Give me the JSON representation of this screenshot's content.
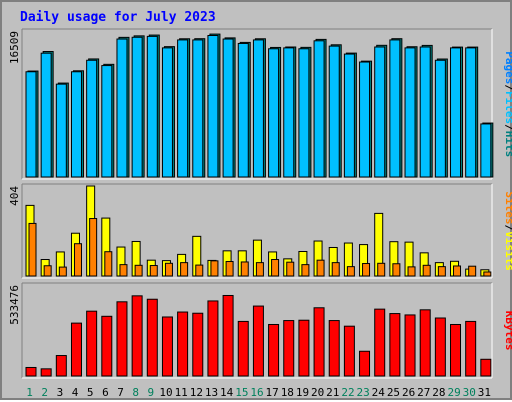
{
  "chart_data": {
    "type": "bar",
    "title": "Daily usage for July 2023",
    "categories": [
      "1",
      "2",
      "3",
      "4",
      "5",
      "6",
      "7",
      "8",
      "9",
      "10",
      "11",
      "12",
      "13",
      "14",
      "15",
      "16",
      "17",
      "18",
      "19",
      "20",
      "21",
      "22",
      "23",
      "24",
      "25",
      "26",
      "27",
      "28",
      "29",
      "30",
      "31"
    ],
    "weekend_days": [
      "1",
      "2",
      "8",
      "9",
      "15",
      "16",
      "22",
      "23",
      "29",
      "30"
    ],
    "panels": [
      {
        "id": "top",
        "max_label": "16509",
        "ylim": [
          0,
          16509
        ],
        "right_label": [
          "Pages",
          "/",
          "Files",
          "/",
          "Hits"
        ],
        "series": [
          {
            "name": "Hits",
            "color": "#008080",
            "values": [
              11980,
              14190,
              10620,
              12010,
              13350,
              12740,
              15790,
              15960,
              16050,
              14740,
              15630,
              15640,
              16160,
              15730,
              15220,
              15630,
              14650,
              14700,
              14660,
              15560,
              14950,
              14010,
              13100,
              14890,
              15640,
              14730,
              14880,
              13340,
              14690,
              14690,
              6100
            ]
          },
          {
            "name": "Files",
            "color": "#00c0ff",
            "values": [
              11900,
              14000,
              10500,
              11900,
              13200,
              12600,
              15600,
              15800,
              15900,
              14600,
              15500,
              15500,
              16000,
              15600,
              15100,
              15500,
              14500,
              14600,
              14500,
              15400,
              14800,
              13900,
              13000,
              14700,
              15500,
              14600,
              14700,
              13200,
              14600,
              14600,
              6000
            ]
          },
          {
            "name": "Pages",
            "color": "#0080ff",
            "values": []
          }
        ]
      },
      {
        "id": "mid",
        "max_label": "404",
        "ylim": [
          0,
          404
        ],
        "right_label": [
          "Sites",
          "/",
          "Visits"
        ],
        "series": [
          {
            "name": "Visits",
            "color": "#ffff00",
            "values": [
              317,
              74,
              108,
              192,
              404,
              260,
              130,
              155,
              71,
              69,
              97,
              178,
              70,
              113,
              113,
              161,
              108,
              77,
              110,
              157,
              128,
              148,
              141,
              281,
              154,
              152,
              104,
              60,
              66,
              31,
              28
            ]
          },
          {
            "name": "Sites",
            "color": "#ff8000",
            "values": [
              236,
              46,
              40,
              145,
              258,
              109,
              51,
              48,
              47,
              57,
              60,
              49,
              68,
              65,
              63,
              60,
              74,
              62,
              51,
              71,
              60,
              42,
              56,
              57,
              55,
              41,
              48,
              42,
              45,
              44,
              18
            ]
          }
        ]
      },
      {
        "id": "bot",
        "max_label": "533476",
        "ylim": [
          0,
          533476
        ],
        "right_label": [
          "KBytes"
        ],
        "series": [
          {
            "name": "KBytes",
            "color": "#ff0000",
            "values": [
              50000,
              42000,
              120000,
              310000,
              380000,
              350000,
              435000,
              470000,
              450000,
              346000,
              375000,
              368000,
              440000,
              472000,
              320000,
              410000,
              302000,
              325000,
              327000,
              400000,
              325000,
              292000,
              145000,
              392000,
              366000,
              358000,
              388000,
              340000,
              302000,
              320000,
              98000
            ]
          }
        ]
      }
    ],
    "colors": {
      "background": "#c0c0c0",
      "title": "#0000ff",
      "label_weekday": "#000000",
      "label_weekend": "#00805c",
      "bar_outline": "#000000"
    }
  }
}
